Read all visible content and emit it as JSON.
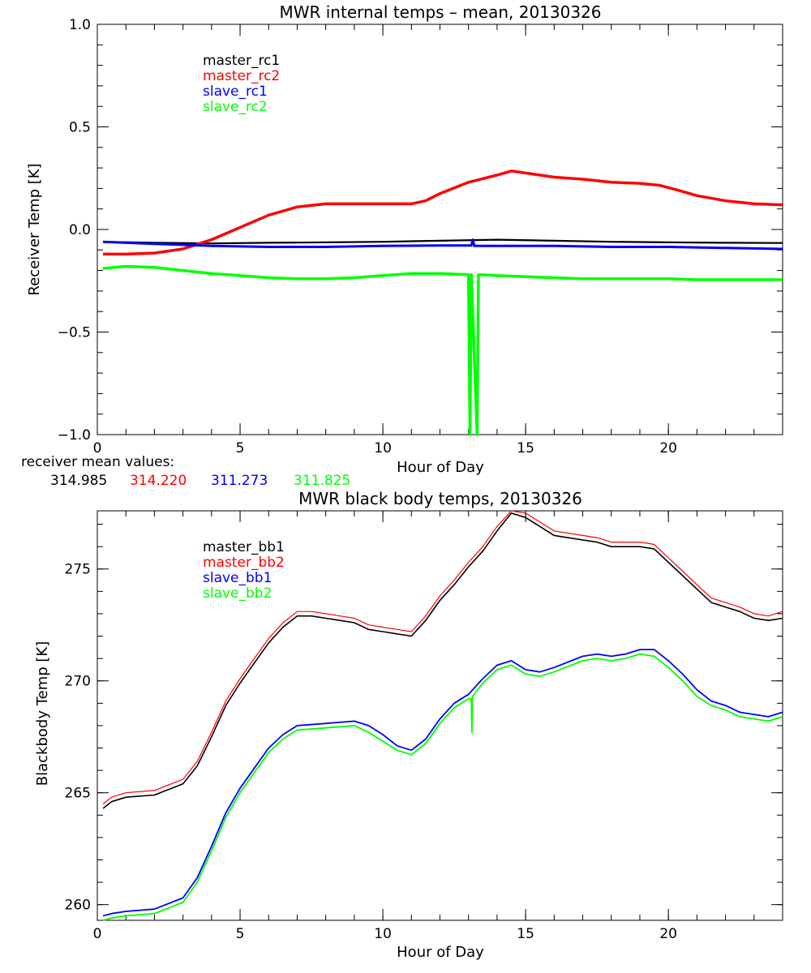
{
  "colors": {
    "master_rc1": "#000000",
    "master_rc2": "#ff0000",
    "slave_rc1": "#0000ff",
    "slave_rc2": "#00ff00",
    "master_bb1": "#000000",
    "master_bb2": "#ff0000",
    "slave_bb1": "#0000ff",
    "slave_bb2": "#00ff00"
  },
  "receiver_means": {
    "label": "receiver mean values:",
    "values": [
      {
        "name": "master_rc1",
        "value": "314.985"
      },
      {
        "name": "master_rc2",
        "value": "314.220"
      },
      {
        "name": "slave_rc1",
        "value": "311.273"
      },
      {
        "name": "slave_rc2",
        "value": "311.825"
      }
    ]
  },
  "chart_data": [
    {
      "type": "line",
      "title": "MWR internal temps – mean, 20130326",
      "xlabel": "Hour of Day",
      "ylabel": "Receiver Temp [K]",
      "xlim": [
        0,
        24
      ],
      "ylim": [
        -1.0,
        1.0
      ],
      "xticks": [
        0,
        5,
        10,
        15,
        20
      ],
      "xtick_labels": [
        "0",
        "5",
        "10",
        "15",
        "20"
      ],
      "yticks": [
        -1.0,
        -0.5,
        0.0,
        0.5,
        1.0
      ],
      "ytick_labels": [
        "−1.0",
        "−0.5",
        "0.0",
        "0.5",
        "1.0"
      ],
      "x_minor": 1,
      "y_minor": 0.1,
      "legend_location": "top-left",
      "series": [
        {
          "name": "master_rc1",
          "x": [
            0.2,
            2,
            4,
            6,
            8,
            10,
            12,
            14,
            16,
            18,
            20,
            22,
            24
          ],
          "values": [
            -0.06,
            -0.065,
            -0.068,
            -0.065,
            -0.063,
            -0.06,
            -0.055,
            -0.05,
            -0.055,
            -0.06,
            -0.063,
            -0.065,
            -0.066
          ]
        },
        {
          "name": "master_rc2",
          "x": [
            0.2,
            1,
            2,
            3,
            4,
            5,
            6,
            7,
            8,
            9,
            10,
            11,
            11.5,
            12,
            13,
            14,
            14.5,
            15,
            16,
            17,
            18,
            19,
            19.7,
            20.5,
            21,
            22,
            23,
            24
          ],
          "values": [
            -0.12,
            -0.12,
            -0.115,
            -0.095,
            -0.05,
            0.01,
            0.07,
            0.11,
            0.125,
            0.125,
            0.125,
            0.125,
            0.14,
            0.175,
            0.23,
            0.265,
            0.285,
            0.275,
            0.255,
            0.245,
            0.23,
            0.225,
            0.215,
            0.185,
            0.165,
            0.14,
            0.125,
            0.12
          ]
        },
        {
          "name": "slave_rc1",
          "x": [
            0.2,
            2,
            4,
            6,
            8,
            10,
            12,
            13.1,
            13.15,
            13.2,
            14,
            16,
            18,
            20,
            22,
            24
          ],
          "values": [
            -0.06,
            -0.07,
            -0.08,
            -0.085,
            -0.085,
            -0.08,
            -0.078,
            -0.078,
            -0.05,
            -0.08,
            -0.08,
            -0.08,
            -0.085,
            -0.085,
            -0.09,
            -0.095
          ]
        },
        {
          "name": "slave_rc2",
          "x": [
            0.2,
            1,
            2,
            3,
            4,
            5,
            6,
            7,
            8,
            9,
            10,
            11,
            12,
            13,
            13.05,
            13.1,
            13.3,
            13.35,
            13.4,
            14,
            15,
            16,
            17,
            18,
            19,
            20,
            21,
            22,
            23,
            24
          ],
          "values": [
            -0.19,
            -0.18,
            -0.185,
            -0.2,
            -0.215,
            -0.225,
            -0.235,
            -0.24,
            -0.24,
            -0.235,
            -0.225,
            -0.215,
            -0.215,
            -0.22,
            -1.0,
            -0.22,
            -1.0,
            -0.22,
            -0.22,
            -0.225,
            -0.23,
            -0.235,
            -0.24,
            -0.24,
            -0.24,
            -0.24,
            -0.245,
            -0.245,
            -0.245,
            -0.245
          ]
        }
      ]
    },
    {
      "type": "line",
      "title": "MWR black body temps, 20130326",
      "xlabel": "Hour of Day",
      "ylabel": "Blackbody Temp [K]",
      "xlim": [
        0,
        24
      ],
      "ylim": [
        259.3,
        277.6
      ],
      "xticks": [
        0,
        5,
        10,
        15,
        20
      ],
      "xtick_labels": [
        "0",
        "5",
        "10",
        "15",
        "20"
      ],
      "yticks": [
        260,
        265,
        270,
        275
      ],
      "ytick_labels": [
        "260",
        "265",
        "270",
        "275"
      ],
      "x_minor": 1,
      "y_minor": 1,
      "legend_location": "top-left",
      "series": [
        {
          "name": "master_bb1",
          "x": [
            0.2,
            0.5,
            1,
            2,
            3,
            3.5,
            4,
            4.5,
            5,
            5.5,
            6,
            6.5,
            7,
            7.5,
            8,
            8.5,
            9,
            9.5,
            10,
            10.5,
            11,
            11.5,
            12,
            12.5,
            13,
            13.5,
            14,
            14.5,
            15,
            15.5,
            16,
            17,
            17.5,
            18,
            18.5,
            19,
            19.5,
            20,
            20.5,
            21,
            21.5,
            22,
            22.5,
            23,
            23.5,
            24
          ],
          "values": [
            264.3,
            264.6,
            264.8,
            264.9,
            265.4,
            266.2,
            267.5,
            268.9,
            269.9,
            270.8,
            271.7,
            272.4,
            272.9,
            272.9,
            272.8,
            272.7,
            272.6,
            272.3,
            272.2,
            272.1,
            272.0,
            272.7,
            273.6,
            274.3,
            275.1,
            275.8,
            276.7,
            277.5,
            277.3,
            276.9,
            276.5,
            276.3,
            276.2,
            276.0,
            276.0,
            276.0,
            275.9,
            275.3,
            274.7,
            274.1,
            273.5,
            273.3,
            273.1,
            272.8,
            272.7,
            272.8
          ]
        },
        {
          "name": "master_bb2",
          "x": [
            0.2,
            0.5,
            1,
            2,
            3,
            3.5,
            4,
            4.5,
            5,
            5.5,
            6,
            6.5,
            7,
            7.5,
            8,
            8.5,
            9,
            9.5,
            10,
            10.5,
            11,
            11.5,
            12,
            12.5,
            13,
            13.5,
            14,
            14.5,
            15,
            15.5,
            16,
            17,
            17.5,
            18,
            18.5,
            19,
            19.5,
            20,
            20.5,
            21,
            21.5,
            22,
            22.5,
            23,
            23.5,
            24
          ],
          "values": [
            264.5,
            264.8,
            265.0,
            265.1,
            265.6,
            266.4,
            267.7,
            269.1,
            270.1,
            271.0,
            271.9,
            272.6,
            273.1,
            273.1,
            273.0,
            272.9,
            272.8,
            272.5,
            272.4,
            272.3,
            272.2,
            272.9,
            273.8,
            274.5,
            275.3,
            276.0,
            276.9,
            277.7,
            277.5,
            277.1,
            276.7,
            276.5,
            276.4,
            276.2,
            276.2,
            276.2,
            276.1,
            275.5,
            274.9,
            274.3,
            273.7,
            273.5,
            273.3,
            273.0,
            272.9,
            273.1
          ]
        },
        {
          "name": "slave_bb1",
          "x": [
            0.2,
            0.5,
            1,
            2,
            3,
            3.5,
            4,
            4.5,
            5,
            5.5,
            6,
            6.5,
            7,
            8,
            9,
            9.5,
            10,
            10.5,
            11,
            11.5,
            12,
            12.5,
            13,
            13.5,
            14,
            14.5,
            15,
            15.5,
            16,
            17,
            17.5,
            18,
            18.5,
            19,
            19.5,
            20,
            20.5,
            21,
            21.5,
            22,
            22.5,
            23,
            23.5,
            24
          ],
          "values": [
            259.5,
            259.6,
            259.7,
            259.8,
            260.3,
            261.2,
            262.6,
            264.1,
            265.2,
            266.1,
            267.0,
            267.6,
            268.0,
            268.1,
            268.2,
            268.0,
            267.6,
            267.1,
            266.9,
            267.4,
            268.3,
            269.0,
            269.4,
            270.1,
            270.7,
            270.9,
            270.5,
            270.4,
            270.6,
            271.1,
            271.2,
            271.1,
            271.2,
            271.4,
            271.4,
            270.9,
            270.3,
            269.6,
            269.1,
            268.9,
            268.6,
            268.5,
            268.4,
            268.6
          ]
        },
        {
          "name": "slave_bb2",
          "x": [
            0.2,
            0.5,
            1,
            2,
            3,
            3.5,
            4,
            4.5,
            5,
            5.5,
            6,
            6.5,
            7,
            8,
            9,
            9.5,
            10,
            10.5,
            11,
            11.5,
            12,
            12.5,
            13,
            13.1,
            13.12,
            13.14,
            13.5,
            14,
            14.5,
            15,
            15.5,
            16,
            17,
            17.5,
            18,
            18.5,
            19,
            19.5,
            20,
            20.5,
            21,
            21.5,
            22,
            22.5,
            23,
            23.5,
            24
          ],
          "values": [
            259.3,
            259.4,
            259.5,
            259.6,
            260.1,
            261.0,
            262.4,
            263.9,
            265.0,
            265.9,
            266.8,
            267.4,
            267.8,
            267.9,
            268.0,
            267.7,
            267.3,
            266.9,
            266.7,
            267.2,
            268.1,
            268.8,
            269.2,
            269.2,
            267.7,
            269.3,
            269.9,
            270.5,
            270.7,
            270.3,
            270.2,
            270.4,
            270.9,
            271.0,
            270.9,
            271.0,
            271.2,
            271.1,
            270.6,
            270.0,
            269.3,
            268.9,
            268.7,
            268.4,
            268.3,
            268.2,
            268.4
          ]
        }
      ]
    }
  ]
}
